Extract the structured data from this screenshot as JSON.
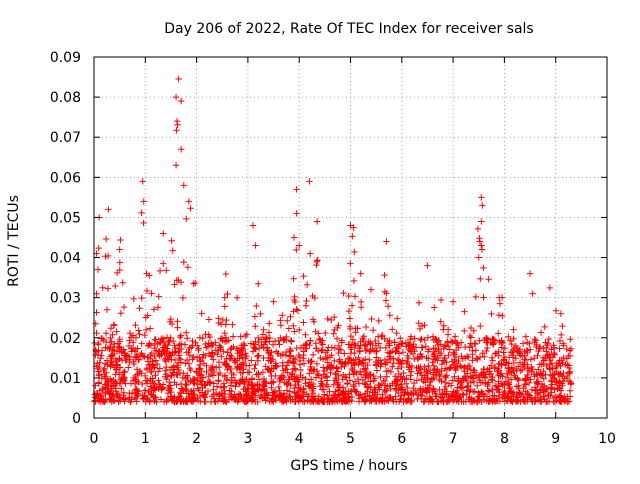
{
  "chart_data": {
    "type": "scatter",
    "title": "Day 206 of 2022, Rate Of TEC Index for receiver sals",
    "xlabel": "GPS time / hours",
    "ylabel": "ROTI / TECUs",
    "xlim": [
      0,
      10
    ],
    "ylim": [
      0,
      0.09
    ],
    "x_ticks": [
      0,
      1,
      2,
      3,
      4,
      5,
      6,
      7,
      8,
      9,
      10
    ],
    "y_ticks": [
      0,
      0.01,
      0.02,
      0.03,
      0.04,
      0.05,
      0.06,
      0.07,
      0.08,
      0.09
    ],
    "x_tick_labels": [
      "0",
      "1",
      "2",
      "3",
      "4",
      "5",
      "6",
      "7",
      "8",
      "9",
      "10"
    ],
    "y_tick_labels": [
      "0",
      "0.01",
      "0.02",
      "0.03",
      "0.04",
      "0.05",
      "0.06",
      "0.07",
      "0.08",
      "0.09"
    ],
    "grid": true,
    "marker": "+",
    "series": [
      {
        "name": "ROTI",
        "color": "#ff0000",
        "x_range": [
          0.0,
          9.3
        ],
        "typical_range": [
          0.004,
          0.02
        ],
        "peaks": [
          {
            "x": 1.65,
            "y": 0.0845
          },
          {
            "x": 1.6,
            "y": 0.08
          },
          {
            "x": 1.7,
            "y": 0.079
          },
          {
            "x": 1.62,
            "y": 0.074
          },
          {
            "x": 1.7,
            "y": 0.067
          },
          {
            "x": 1.6,
            "y": 0.063
          },
          {
            "x": 1.75,
            "y": 0.058
          },
          {
            "x": 0.95,
            "y": 0.059
          },
          {
            "x": 0.97,
            "y": 0.054
          },
          {
            "x": 0.28,
            "y": 0.052
          },
          {
            "x": 0.1,
            "y": 0.05
          },
          {
            "x": 0.05,
            "y": 0.041
          },
          {
            "x": 0.5,
            "y": 0.042
          },
          {
            "x": 1.35,
            "y": 0.046
          },
          {
            "x": 1.85,
            "y": 0.054
          },
          {
            "x": 3.1,
            "y": 0.048
          },
          {
            "x": 3.15,
            "y": 0.043
          },
          {
            "x": 3.5,
            "y": 0.029
          },
          {
            "x": 3.95,
            "y": 0.057
          },
          {
            "x": 3.95,
            "y": 0.051
          },
          {
            "x": 4.2,
            "y": 0.059
          },
          {
            "x": 4.35,
            "y": 0.049
          },
          {
            "x": 3.9,
            "y": 0.045
          },
          {
            "x": 4.0,
            "y": 0.043
          },
          {
            "x": 5.0,
            "y": 0.048
          },
          {
            "x": 5.7,
            "y": 0.044
          },
          {
            "x": 5.2,
            "y": 0.036
          },
          {
            "x": 6.5,
            "y": 0.038
          },
          {
            "x": 7.55,
            "y": 0.055
          },
          {
            "x": 7.57,
            "y": 0.053
          },
          {
            "x": 7.55,
            "y": 0.049
          },
          {
            "x": 7.55,
            "y": 0.043
          },
          {
            "x": 7.5,
            "y": 0.04
          },
          {
            "x": 8.5,
            "y": 0.036
          },
          {
            "x": 8.55,
            "y": 0.031
          },
          {
            "x": 9.1,
            "y": 0.026
          },
          {
            "x": 7.9,
            "y": 0.03
          },
          {
            "x": 7.0,
            "y": 0.029
          },
          {
            "x": 2.55,
            "y": 0.03
          },
          {
            "x": 5.4,
            "y": 0.032
          }
        ]
      }
    ]
  }
}
